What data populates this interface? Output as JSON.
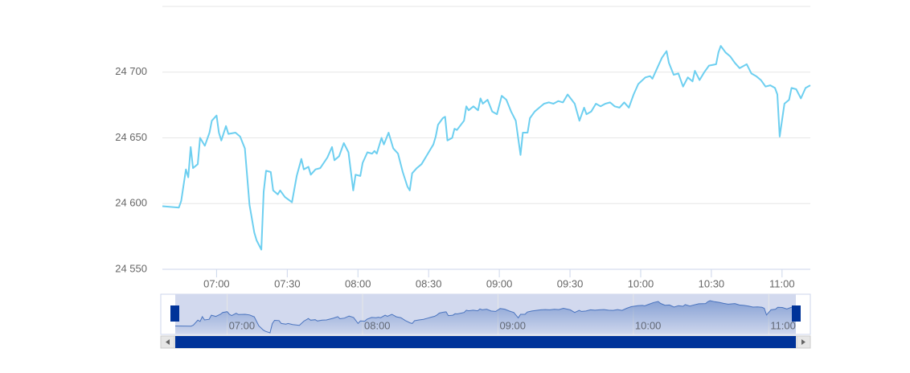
{
  "chart_data": {
    "type": "line",
    "color": "#6dcff0",
    "navigator_color": "#4a74bf",
    "x": [
      "06:37",
      "06:44",
      "06:45",
      "06:47",
      "06:48",
      "06:49",
      "06:50",
      "06:52",
      "06:53",
      "06:55",
      "06:57",
      "06:58",
      "07:00",
      "07:01",
      "07:02",
      "07:04",
      "07:05",
      "07:08",
      "07:10",
      "07:12",
      "07:14",
      "07:16",
      "07:17",
      "07:19",
      "07:20",
      "07:21",
      "07:23",
      "07:24",
      "07:26",
      "07:27",
      "07:29",
      "07:32",
      "07:34",
      "07:36",
      "07:37",
      "07:39",
      "07:40",
      "07:42",
      "07:44",
      "07:47",
      "07:49",
      "07:50",
      "07:52",
      "07:54",
      "07:56",
      "07:58",
      "07:59",
      "08:01",
      "08:02",
      "08:04",
      "08:06",
      "08:07",
      "08:08",
      "08:10",
      "08:11",
      "08:13",
      "08:15",
      "08:17",
      "08:19",
      "08:21",
      "08:22",
      "08:23",
      "08:25",
      "08:27",
      "08:29",
      "08:30",
      "08:32",
      "08:33",
      "08:34",
      "08:36",
      "08:37",
      "08:38",
      "08:40",
      "08:41",
      "08:42",
      "08:45",
      "08:46",
      "08:47",
      "08:49",
      "08:51",
      "08:52",
      "08:53",
      "08:55",
      "08:57",
      "08:59",
      "09:01",
      "09:03",
      "09:05",
      "09:07",
      "09:09",
      "09:10",
      "09:12",
      "09:13",
      "09:15",
      "09:17",
      "09:19",
      "09:21",
      "09:23",
      "09:25",
      "09:27",
      "09:29",
      "09:32",
      "09:34",
      "09:36",
      "09:37",
      "09:39",
      "09:41",
      "09:43",
      "09:45",
      "09:47",
      "09:49",
      "09:51",
      "09:53",
      "09:55",
      "09:57",
      "09:59",
      "10:02",
      "10:04",
      "10:05",
      "10:07",
      "10:09",
      "10:11",
      "10:12",
      "10:14",
      "10:16",
      "10:18",
      "10:20",
      "10:22",
      "10:23",
      "10:25",
      "10:27",
      "10:29",
      "10:32",
      "10:33",
      "10:34",
      "10:36",
      "10:38",
      "10:40",
      "10:42",
      "10:45",
      "10:47",
      "10:49",
      "10:51",
      "10:53",
      "10:55",
      "10:57",
      "10:58",
      "10:59",
      "11:01",
      "11:03",
      "11:04",
      "11:06",
      "11:08",
      "11:10",
      "11:12"
    ],
    "values": [
      24598,
      24597,
      24602,
      24626,
      24620,
      24643,
      24627,
      24630,
      24650,
      24644,
      24654,
      24663,
      24667,
      24654,
      24648,
      24659,
      24653,
      24654,
      24651,
      24642,
      24599,
      24578,
      24572,
      24565,
      24609,
      24625,
      24624,
      24610,
      24607,
      24610,
      24605,
      24601,
      24621,
      24634,
      24626,
      24628,
      24622,
      24626,
      24627,
      24635,
      24643,
      24633,
      24636,
      24646,
      24639,
      24610,
      24622,
      24621,
      24631,
      24639,
      24638,
      24640,
      24638,
      24650,
      24645,
      24654,
      24642,
      24638,
      24624,
      24613,
      24610,
      24623,
      24627,
      24630,
      24636,
      24639,
      24645,
      24651,
      24660,
      24665,
      24666,
      24648,
      24650,
      24657,
      24656,
      24663,
      24674,
      24671,
      24674,
      24671,
      24680,
      24676,
      24679,
      24670,
      24668,
      24682,
      24679,
      24670,
      24663,
      24637,
      24654,
      24654,
      24665,
      24670,
      24673,
      24676,
      24677,
      24676,
      24678,
      24677,
      24683,
      24676,
      24663,
      24673,
      24668,
      24670,
      24676,
      24674,
      24676,
      24677,
      24674,
      24673,
      24677,
      24673,
      24683,
      24691,
      24696,
      24697,
      24695,
      24703,
      24711,
      24716,
      24707,
      24698,
      24699,
      24689,
      24696,
      24693,
      24701,
      24694,
      24700,
      24705,
      24706,
      24715,
      24720,
      24715,
      24712,
      24707,
      24703,
      24706,
      24699,
      24697,
      24694,
      24689,
      24690,
      24688,
      24683,
      24651,
      24676,
      24679,
      24688,
      24687,
      24680,
      24688,
      24690
    ],
    "xlim": [
      "06:37",
      "11:12"
    ],
    "xticks": [
      "07:00",
      "07:30",
      "08:00",
      "08:30",
      "09:00",
      "09:30",
      "10:00",
      "10:30",
      "11:00"
    ],
    "ylim": [
      24550,
      24750
    ],
    "yticks": [
      {
        "value": 24550,
        "label": "24 550"
      },
      {
        "value": 24600,
        "label": "24 600"
      },
      {
        "value": 24650,
        "label": "24 650"
      },
      {
        "value": 24700,
        "label": "24 700"
      }
    ],
    "grid": true
  }
}
